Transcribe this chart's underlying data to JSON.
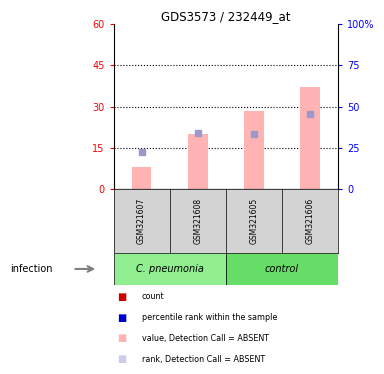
{
  "title": "GDS3573 / 232449_at",
  "samples": [
    "GSM321607",
    "GSM321608",
    "GSM321605",
    "GSM321606"
  ],
  "group_label_1": "C. pneumonia",
  "group_label_2": "control",
  "group_color_1": "#90ee90",
  "group_color_2": "#66dd66",
  "pink_bar_values": [
    8.0,
    20.0,
    28.5,
    37.0
  ],
  "blue_square_values": [
    13.5,
    20.5,
    20.0,
    27.5
  ],
  "pink_bar_color": "#ffb3b3",
  "blue_square_color": "#9999cc",
  "red_square_color": "#cc0000",
  "blue_dark_color": "#0000cc",
  "ylim_left": [
    0,
    60
  ],
  "ylim_right": [
    0,
    100
  ],
  "yticks_left": [
    0,
    15,
    30,
    45,
    60
  ],
  "yticks_right": [
    0,
    25,
    50,
    75,
    100
  ],
  "ytick_labels_right": [
    "0",
    "25",
    "50",
    "75",
    "100%"
  ],
  "grid_levels": [
    15,
    30,
    45
  ],
  "infection_label": "infection",
  "bar_width": 0.35,
  "sample_box_color": "#d3d3d3",
  "legend_items": [
    {
      "color": "#cc0000",
      "label": "count"
    },
    {
      "color": "#0000cc",
      "label": "percentile rank within the sample"
    },
    {
      "color": "#ffb3b3",
      "label": "value, Detection Call = ABSENT"
    },
    {
      "color": "#ccccee",
      "label": "rank, Detection Call = ABSENT"
    }
  ]
}
